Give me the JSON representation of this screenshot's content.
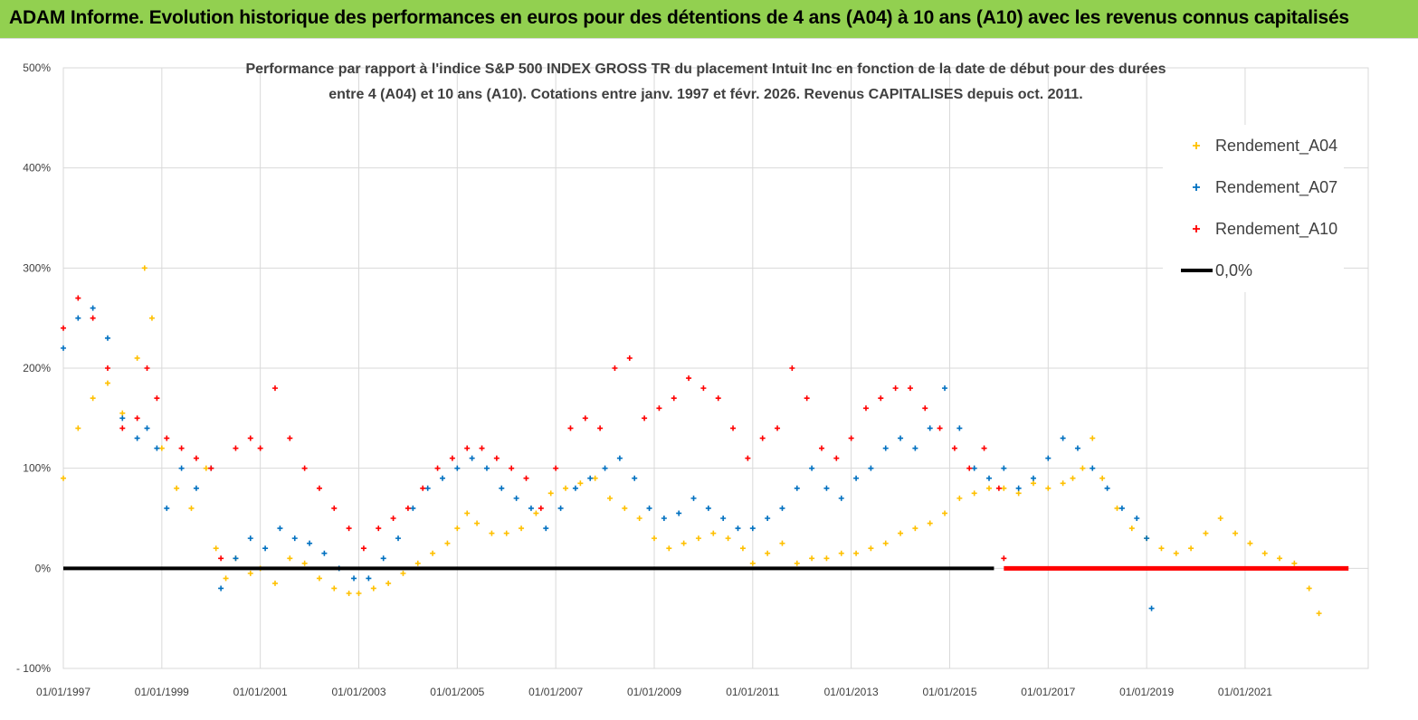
{
  "banner": {
    "title": "ADAM Informe. Evolution historique des performances en euros pour des détentions de 4 ans (A04) à 10 ans (A10) avec les revenus connus capitalisés"
  },
  "colors": {
    "banner_bg": "#92d050",
    "a04": "#ffc000",
    "a07": "#0070c0",
    "a10": "#ff0000",
    "zero_line": "#000000",
    "grid": "#d9d9d9"
  },
  "chart_data": {
    "type": "scatter",
    "title_lines": [
      "Performance par rapport à l'indice S&P 500 INDEX GROSS TR  du placement Intuit Inc en fonction de la date de début pour des durées",
      "entre 4 (A04) et 10 ans (A10). Cotations entre janv. 1997 et févr. 2026. Revenus CAPITALISES depuis oct. 2011."
    ],
    "xlabel": "",
    "ylabel": "",
    "x_range": [
      1997.0,
      2023.5
    ],
    "ylim": [
      -100,
      500
    ],
    "y_ticks": [
      {
        "value": -100,
        "label": "- 100%"
      },
      {
        "value": 0,
        "label": "0%"
      },
      {
        "value": 100,
        "label": "100%"
      },
      {
        "value": 200,
        "label": "200%"
      },
      {
        "value": 300,
        "label": "300%"
      },
      {
        "value": 400,
        "label": "400%"
      },
      {
        "value": 500,
        "label": "500%"
      }
    ],
    "x_ticks": [
      {
        "year": 1997,
        "label": "01/01/1997"
      },
      {
        "year": 1999,
        "label": "01/01/1999"
      },
      {
        "year": 2001,
        "label": "01/01/2001"
      },
      {
        "year": 2003,
        "label": "01/01/2003"
      },
      {
        "year": 2005,
        "label": "01/01/2005"
      },
      {
        "year": 2007,
        "label": "01/01/2007"
      },
      {
        "year": 2009,
        "label": "01/01/2009"
      },
      {
        "year": 2011,
        "label": "01/01/2011"
      },
      {
        "year": 2013,
        "label": "01/01/2013"
      },
      {
        "year": 2015,
        "label": "01/01/2015"
      },
      {
        "year": 2017,
        "label": "01/01/2017"
      },
      {
        "year": 2019,
        "label": "01/01/2019"
      },
      {
        "year": 2021,
        "label": "01/01/2021"
      }
    ],
    "grid": true,
    "legend_position": "top-right",
    "series": [
      {
        "name": "Rendement_A04",
        "color": "#ffc000",
        "marker": "+",
        "x": [
          1997.0,
          1997.3,
          1997.6,
          1997.9,
          1998.2,
          1998.5,
          1998.65,
          1998.8,
          1999.0,
          1999.3,
          1999.6,
          1999.9,
          2000.1,
          2000.3,
          2000.5,
          2000.8,
          2001.0,
          2001.3,
          2001.6,
          2001.9,
          2002.2,
          2002.5,
          2002.8,
          2003.0,
          2003.3,
          2003.6,
          2003.9,
          2004.2,
          2004.5,
          2004.8,
          2005.0,
          2005.2,
          2005.4,
          2005.7,
          2006.0,
          2006.3,
          2006.6,
          2006.9,
          2007.2,
          2007.5,
          2007.8,
          2008.1,
          2008.4,
          2008.7,
          2009.0,
          2009.3,
          2009.6,
          2009.9,
          2010.2,
          2010.5,
          2010.8,
          2011.0,
          2011.3,
          2011.6,
          2011.9,
          2012.2,
          2012.5,
          2012.8,
          2013.1,
          2013.4,
          2013.7,
          2014.0,
          2014.3,
          2014.6,
          2014.9,
          2015.2,
          2015.5,
          2015.8,
          2016.1,
          2016.4,
          2016.7,
          2017.0,
          2017.3,
          2017.5,
          2017.7,
          2017.9,
          2018.1,
          2018.4,
          2018.7,
          2019.0,
          2019.3,
          2019.6,
          2019.9,
          2020.2,
          2020.5,
          2020.8,
          2021.1,
          2021.4,
          2021.7,
          2022.0,
          2022.3,
          2022.5
        ],
        "y": [
          90,
          140,
          170,
          185,
          155,
          210,
          300,
          250,
          120,
          80,
          60,
          100,
          20,
          -10,
          10,
          -5,
          0,
          -15,
          10,
          5,
          -10,
          -20,
          -25,
          -25,
          -20,
          -15,
          -5,
          5,
          15,
          25,
          40,
          55,
          45,
          35,
          35,
          40,
          55,
          75,
          80,
          85,
          90,
          70,
          60,
          50,
          30,
          20,
          25,
          30,
          35,
          30,
          20,
          5,
          15,
          25,
          5,
          10,
          10,
          15,
          15,
          20,
          25,
          35,
          40,
          45,
          55,
          70,
          75,
          80,
          80,
          75,
          85,
          80,
          85,
          90,
          100,
          130,
          90,
          60,
          40,
          30,
          20,
          15,
          20,
          35,
          50,
          35,
          25,
          15,
          10,
          5,
          -20,
          -45
        ]
      },
      {
        "name": "Rendement_A07",
        "color": "#0070c0",
        "marker": "+",
        "x": [
          1997.0,
          1997.3,
          1997.6,
          1997.9,
          1998.2,
          1998.5,
          1998.7,
          1998.9,
          1999.1,
          1999.4,
          1999.7,
          2000.0,
          2000.2,
          2000.5,
          2000.8,
          2001.1,
          2001.4,
          2001.7,
          2002.0,
          2002.3,
          2002.6,
          2002.9,
          2003.2,
          2003.5,
          2003.8,
          2004.1,
          2004.4,
          2004.7,
          2005.0,
          2005.3,
          2005.6,
          2005.9,
          2006.2,
          2006.5,
          2006.8,
          2007.1,
          2007.4,
          2007.7,
          2008.0,
          2008.3,
          2008.6,
          2008.9,
          2009.2,
          2009.5,
          2009.8,
          2010.1,
          2010.4,
          2010.7,
          2011.0,
          2011.3,
          2011.6,
          2011.9,
          2012.2,
          2012.5,
          2012.8,
          2013.1,
          2013.4,
          2013.7,
          2014.0,
          2014.3,
          2014.6,
          2014.9,
          2015.2,
          2015.5,
          2015.8,
          2016.1,
          2016.4,
          2016.7,
          2017.0,
          2017.3,
          2017.6,
          2017.9,
          2018.2,
          2018.5,
          2018.8,
          2019.0,
          2019.1
        ],
        "y": [
          220,
          250,
          260,
          230,
          150,
          130,
          140,
          120,
          60,
          100,
          80,
          100,
          -20,
          10,
          30,
          20,
          40,
          30,
          25,
          15,
          0,
          -10,
          -10,
          10,
          30,
          60,
          80,
          90,
          100,
          110,
          100,
          80,
          70,
          60,
          40,
          60,
          80,
          90,
          100,
          110,
          90,
          60,
          50,
          55,
          70,
          60,
          50,
          40,
          40,
          50,
          60,
          80,
          100,
          80,
          70,
          90,
          100,
          120,
          130,
          120,
          140,
          180,
          140,
          100,
          90,
          100,
          80,
          90,
          110,
          130,
          120,
          100,
          80,
          60,
          50,
          30,
          -40
        ]
      },
      {
        "name": "Rendement_A10",
        "color": "#ff0000",
        "marker": "+",
        "x": [
          1997.0,
          1997.3,
          1997.6,
          1997.9,
          1998.2,
          1998.5,
          1998.7,
          1998.9,
          1999.1,
          1999.4,
          1999.7,
          2000.0,
          2000.2,
          2000.5,
          2000.8,
          2001.0,
          2001.3,
          2001.6,
          2001.9,
          2002.2,
          2002.5,
          2002.8,
          2003.1,
          2003.4,
          2003.7,
          2004.0,
          2004.3,
          2004.6,
          2004.9,
          2005.2,
          2005.5,
          2005.8,
          2006.1,
          2006.4,
          2006.7,
          2007.0,
          2007.3,
          2007.6,
          2007.9,
          2008.2,
          2008.5,
          2008.8,
          2009.1,
          2009.4,
          2009.7,
          2010.0,
          2010.3,
          2010.6,
          2010.9,
          2011.2,
          2011.5,
          2011.8,
          2012.1,
          2012.4,
          2012.7,
          2013.0,
          2013.3,
          2013.6,
          2013.9,
          2014.2,
          2014.5,
          2014.8,
          2015.1,
          2015.4,
          2015.7,
          2016.0,
          2016.1
        ],
        "y": [
          240,
          270,
          250,
          200,
          140,
          150,
          200,
          170,
          130,
          120,
          110,
          100,
          10,
          120,
          130,
          120,
          180,
          130,
          100,
          80,
          60,
          40,
          20,
          40,
          50,
          60,
          80,
          100,
          110,
          120,
          120,
          110,
          100,
          90,
          60,
          100,
          140,
          150,
          140,
          200,
          210,
          150,
          160,
          170,
          190,
          180,
          170,
          140,
          110,
          130,
          140,
          200,
          170,
          120,
          110,
          130,
          160,
          170,
          180,
          180,
          160,
          140,
          120,
          100,
          120,
          80,
          10
        ]
      }
    ],
    "zero_line": {
      "label": "0,0%",
      "y": 0,
      "x_range": [
        1997.0,
        2015.9
      ]
    },
    "a10_zero_segment": {
      "y": 0,
      "x_range": [
        2016.1,
        2023.1
      ]
    },
    "legend": [
      {
        "label": "Rendement_A04",
        "color": "#ffc000",
        "kind": "marker"
      },
      {
        "label": "Rendement_A07",
        "color": "#0070c0",
        "kind": "marker"
      },
      {
        "label": "Rendement_A10",
        "color": "#ff0000",
        "kind": "marker"
      },
      {
        "label": "0,0%",
        "color": "#000000",
        "kind": "line"
      }
    ]
  }
}
